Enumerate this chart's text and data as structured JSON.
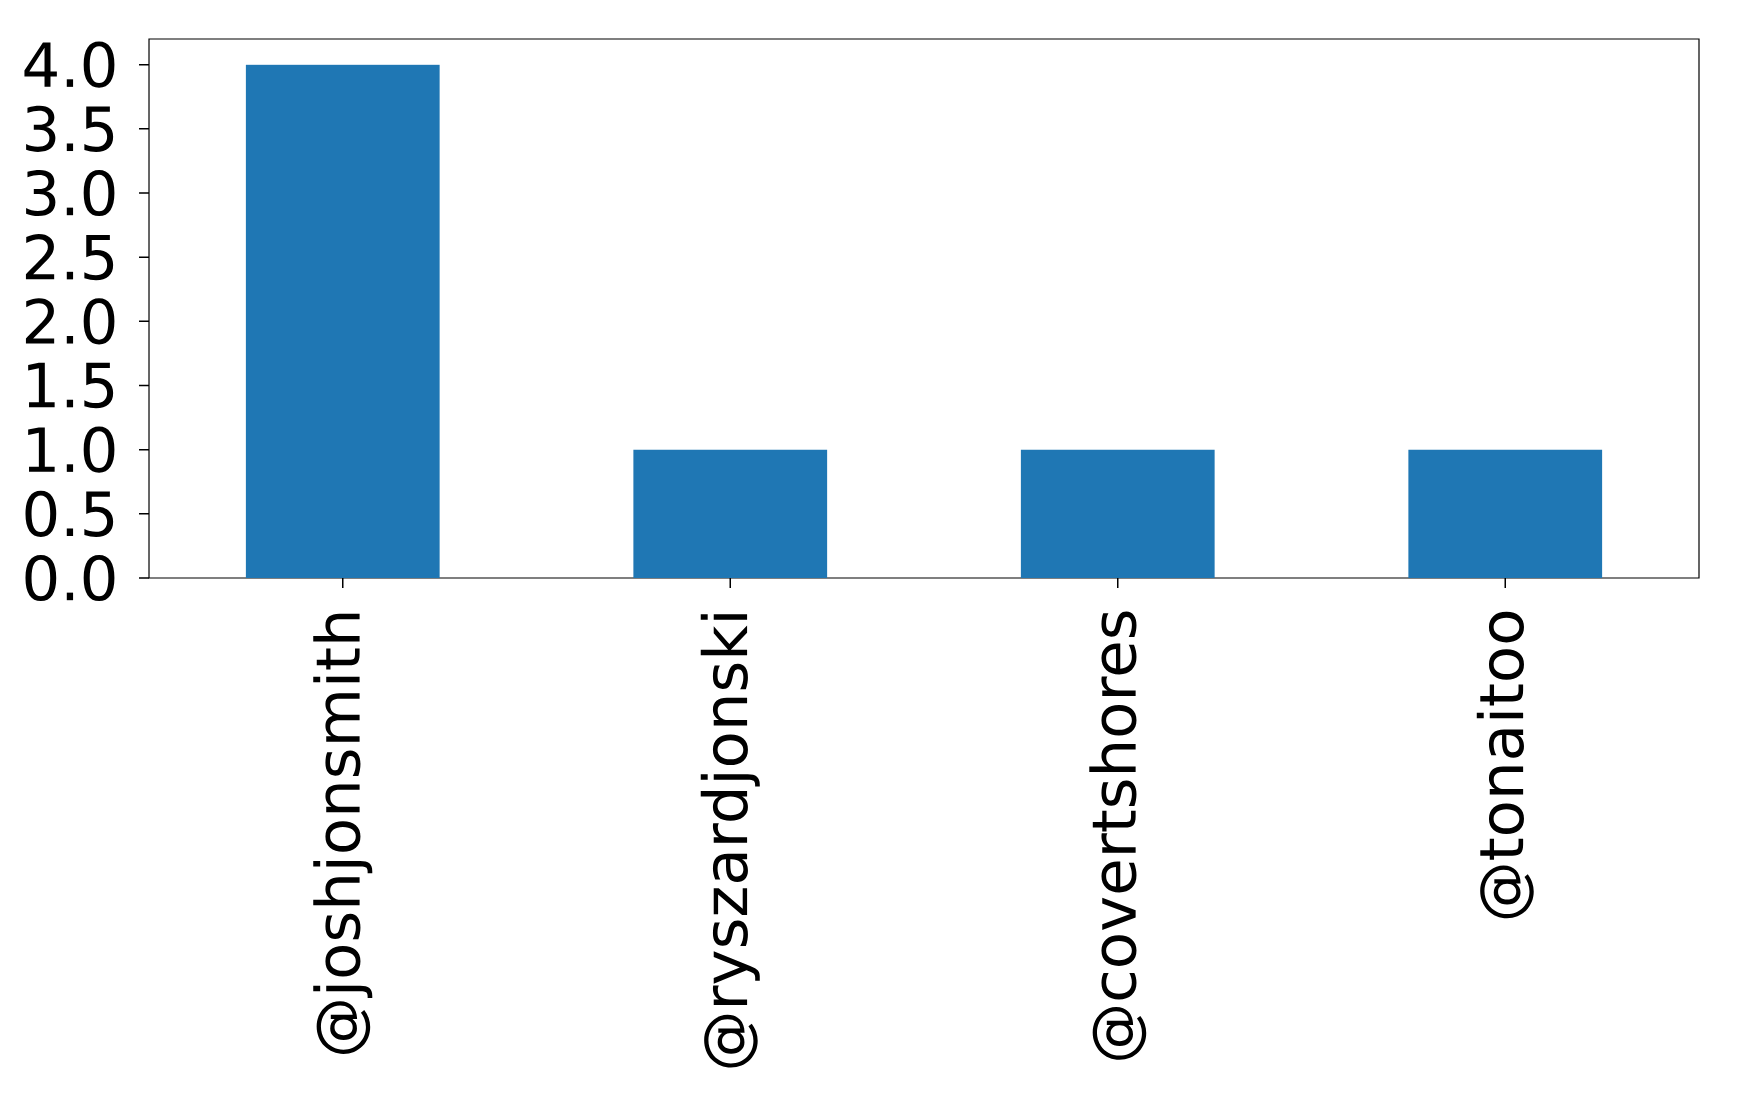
{
  "chart_data": {
    "type": "bar",
    "categories": [
      "@joshjonsmith",
      "@ryszardjonski",
      "@covertshores",
      "@tonaitoo"
    ],
    "values": [
      4,
      1,
      1,
      1
    ],
    "color": "#1f77b4",
    "ylim": [
      0,
      4.2
    ],
    "yticks": [
      {
        "value": 0,
        "label": "0.0"
      },
      {
        "value": 0.5,
        "label": "0.5"
      },
      {
        "value": 1,
        "label": "1.0"
      },
      {
        "value": 1.5,
        "label": "1.5"
      },
      {
        "value": 2,
        "label": "2.0"
      },
      {
        "value": 2.5,
        "label": "2.5"
      },
      {
        "value": 3,
        "label": "3.0"
      },
      {
        "value": 3.5,
        "label": "3.5"
      },
      {
        "value": 4,
        "label": "4.0"
      }
    ],
    "grid": false
  }
}
